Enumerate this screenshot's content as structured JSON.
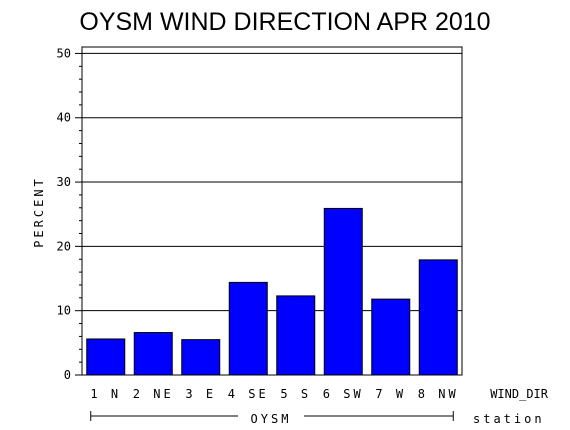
{
  "chart_data": {
    "type": "bar",
    "title": "OYSM WIND DIRECTION APR 2010",
    "xlabel": "WIND_DIR",
    "ylabel": "PERCENT",
    "group_axis_label": "station",
    "group": "OYSM",
    "categories": [
      "1 N",
      "2 NE",
      "3 E",
      "4 SE",
      "5 S",
      "6 SW",
      "7 W",
      "8 NW"
    ],
    "values": [
      5.6,
      6.6,
      5.5,
      14.4,
      12.3,
      25.9,
      11.8,
      17.9
    ],
    "ylim": [
      0,
      51
    ],
    "yticks": [
      0,
      10,
      20,
      30,
      40,
      50
    ],
    "bar_color": "#0000ff",
    "grid": true
  }
}
